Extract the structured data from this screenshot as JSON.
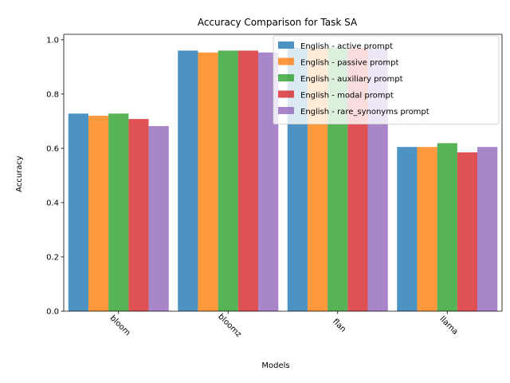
{
  "chart_data": {
    "type": "bar",
    "title": "Accuracy Comparison for Task SA",
    "xlabel": "Models",
    "ylabel": "Accuracy",
    "categories": [
      "bloom",
      "bloomz",
      "flan",
      "llama"
    ],
    "ylim": [
      0,
      1.02
    ],
    "yticks": [
      "0.0",
      "0.2",
      "0.4",
      "0.6",
      "0.8",
      "1.0"
    ],
    "ytick_values": [
      0,
      0.2,
      0.4,
      0.6,
      0.8,
      1.0
    ],
    "grid": false,
    "legend_position": "top-right",
    "series": [
      {
        "name": "English - active prompt",
        "color": "#1f77b4",
        "values": [
          0.728,
          0.96,
          0.971,
          0.605
        ]
      },
      {
        "name": "English - passive prompt",
        "color": "#ff7f0e",
        "values": [
          0.72,
          0.953,
          0.969,
          0.605
        ]
      },
      {
        "name": "English - auxiliary prompt",
        "color": "#2ca02c",
        "values": [
          0.728,
          0.96,
          0.971,
          0.619
        ]
      },
      {
        "name": "English - modal prompt",
        "color": "#d62728",
        "values": [
          0.708,
          0.96,
          0.969,
          0.585
        ]
      },
      {
        "name": "English - rare_synonyms prompt",
        "color": "#9467bd",
        "values": [
          0.682,
          0.953,
          0.969,
          0.605
        ]
      }
    ]
  }
}
